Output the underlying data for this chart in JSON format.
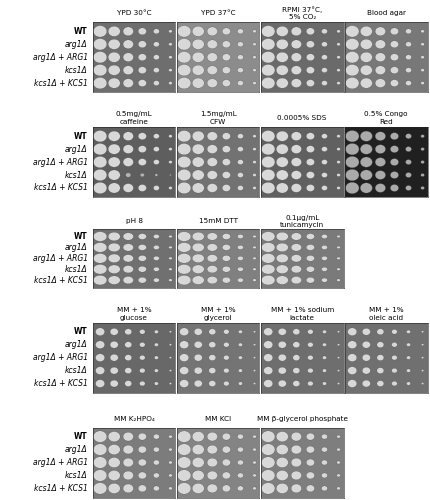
{
  "row_labels": [
    "WT",
    "arg1Δ",
    "arg1Δ + ARG1",
    "kcs1Δ",
    "kcs1Δ + KCS1"
  ],
  "panels": [
    {
      "label": "YPD 30°C",
      "row": 0,
      "col": 0,
      "bg": "#6e6e6e"
    },
    {
      "label": "YPD 37°C",
      "row": 0,
      "col": 1,
      "bg": "#8c8c8c"
    },
    {
      "label": "RPMI 37°C,\n5% CO₂",
      "row": 0,
      "col": 2,
      "bg": "#6a6a6a"
    },
    {
      "label": "Blood agar",
      "row": 0,
      "col": 3,
      "bg": "#787878"
    },
    {
      "label": "0.5mg/mL\ncaffeine",
      "row": 1,
      "col": 0,
      "bg": "#5e5e5e"
    },
    {
      "label": "1.5mg/mL\nCFW",
      "row": 1,
      "col": 1,
      "bg": "#727272"
    },
    {
      "label": "0.0005% SDS",
      "row": 1,
      "col": 2,
      "bg": "#606060"
    },
    {
      "label": "0.5% Congo\nRed",
      "row": 1,
      "col": 3,
      "bg": "#202020"
    },
    {
      "label": "pH 8",
      "row": 2,
      "col": 0,
      "bg": "#707070"
    },
    {
      "label": "15mM DTT",
      "row": 2,
      "col": 1,
      "bg": "#808080"
    },
    {
      "label": "0.1µg/mL\ntunicamycin",
      "row": 2,
      "col": 2,
      "bg": "#7a7a7a"
    },
    {
      "label": "MM + 1%\nglucose",
      "row": 3,
      "col": 0,
      "bg": "#686868"
    },
    {
      "label": "MM + 1%\nglycerol",
      "row": 3,
      "col": 1,
      "bg": "#747474"
    },
    {
      "label": "MM + 1% sodium\nlactate",
      "row": 3,
      "col": 2,
      "bg": "#6e6e6e"
    },
    {
      "label": "MM + 1%\noleic acid",
      "row": 3,
      "col": 3,
      "bg": "#707070"
    },
    {
      "label": "MM K₂HPO₄",
      "row": 4,
      "col": 0,
      "bg": "#7c7c7c"
    },
    {
      "label": "MM KCl",
      "row": 4,
      "col": 1,
      "bg": "#848484"
    },
    {
      "label": "MM β-glycerol phosphate",
      "row": 4,
      "col": 2,
      "bg": "#7e7e7e"
    }
  ],
  "panels_per_row": [
    4,
    4,
    3,
    4,
    3
  ],
  "spot_color": "#d8d8d8",
  "spot_color_dark_bg": "#b0b0b0",
  "figure_bg": "#ffffff"
}
